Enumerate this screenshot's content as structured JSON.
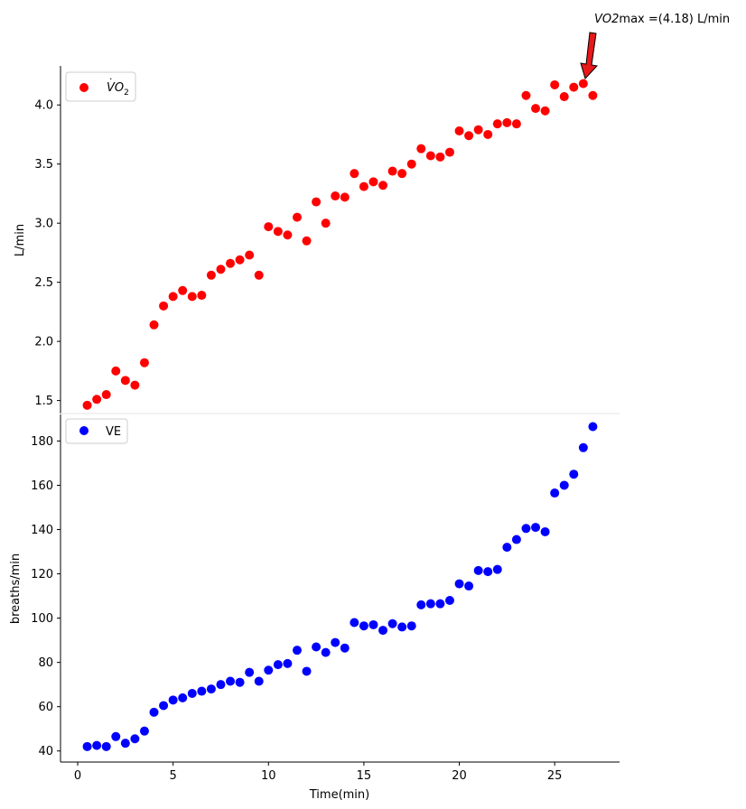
{
  "chart_data": [
    {
      "type": "scatter",
      "ylabel": "L/min",
      "xlabel": "",
      "xlim": [
        -0.9,
        28.4
      ],
      "ylim": [
        1.39,
        4.33
      ],
      "yticks": [
        "1.5",
        "2.0",
        "2.5",
        "3.0",
        "3.5",
        "4.0"
      ],
      "ytick_values": [
        1.5,
        2.0,
        2.5,
        3.0,
        3.5,
        4.0
      ],
      "legend_placement": "upper-left",
      "series": [
        {
          "name": "VO2",
          "color": "#ff0000",
          "x": [
            0.5,
            1.0,
            1.5,
            2.0,
            2.5,
            3.0,
            3.5,
            4.0,
            4.5,
            5.0,
            5.5,
            6.0,
            6.5,
            7.0,
            7.5,
            8.0,
            8.5,
            9.0,
            9.5,
            10.0,
            10.5,
            11.0,
            11.5,
            12.0,
            12.5,
            13.0,
            13.5,
            14.0,
            14.5,
            15.0,
            15.5,
            16.0,
            16.5,
            17.0,
            17.5,
            18.0,
            18.5,
            19.0,
            19.5,
            20.0,
            20.5,
            21.0,
            21.5,
            22.0,
            22.5,
            23.0,
            23.5,
            24.0,
            24.5,
            25.0,
            25.5,
            26.0,
            26.5,
            27.0
          ],
          "y": [
            1.46,
            1.51,
            1.55,
            1.75,
            1.67,
            1.63,
            1.82,
            2.14,
            2.3,
            2.38,
            2.43,
            2.38,
            2.39,
            2.56,
            2.61,
            2.66,
            2.69,
            2.73,
            2.56,
            2.97,
            2.93,
            2.9,
            3.05,
            2.85,
            3.18,
            3.0,
            3.23,
            3.22,
            3.42,
            3.31,
            3.35,
            3.32,
            3.44,
            3.42,
            3.5,
            3.63,
            3.57,
            3.56,
            3.6,
            3.78,
            3.74,
            3.79,
            3.75,
            3.84,
            3.85,
            3.84,
            4.08,
            3.97,
            3.95,
            4.17,
            4.07,
            4.15,
            4.18,
            4.08
          ]
        }
      ],
      "annotation": {
        "text_prefix": "VO2",
        "text_suffix": "max =(4.18) L/min",
        "x": 26.5,
        "y": 4.18
      },
      "legend_label_main": "VO",
      "legend_label_sub": "2"
    },
    {
      "type": "scatter",
      "ylabel": "breaths/min",
      "xlabel": "Time(min)",
      "xlim": [
        -0.9,
        28.4
      ],
      "ylim": [
        35,
        192
      ],
      "xticks": [
        "0",
        "5",
        "10",
        "15",
        "20",
        "25"
      ],
      "xtick_values": [
        0,
        5,
        10,
        15,
        20,
        25
      ],
      "yticks": [
        "40",
        "60",
        "80",
        "100",
        "120",
        "140",
        "160",
        "180"
      ],
      "ytick_values": [
        40,
        60,
        80,
        100,
        120,
        140,
        160,
        180
      ],
      "legend_placement": "upper-left",
      "series": [
        {
          "name": "VE",
          "color": "#0000ff",
          "x": [
            0.5,
            1.0,
            1.5,
            2.0,
            2.5,
            3.0,
            3.5,
            4.0,
            4.5,
            5.0,
            5.5,
            6.0,
            6.5,
            7.0,
            7.5,
            8.0,
            8.5,
            9.0,
            9.5,
            10.0,
            10.5,
            11.0,
            11.5,
            12.0,
            12.5,
            13.0,
            13.5,
            14.0,
            14.5,
            15.0,
            15.5,
            16.0,
            16.5,
            17.0,
            17.5,
            18.0,
            18.5,
            19.0,
            19.5,
            20.0,
            20.5,
            21.0,
            21.5,
            22.0,
            22.5,
            23.0,
            23.5,
            24.0,
            24.5,
            25.0,
            25.5,
            26.0,
            26.5,
            27.0
          ],
          "y": [
            42,
            42.5,
            42,
            46.5,
            43.5,
            45.5,
            49,
            57.5,
            60.5,
            63,
            64,
            66,
            67,
            68,
            70,
            71.5,
            71,
            75.5,
            71.5,
            76.5,
            79,
            79.5,
            85.5,
            76,
            87,
            84.5,
            89,
            86.5,
            98,
            96.5,
            97,
            94.5,
            97.5,
            96,
            96.5,
            106,
            106.5,
            106.5,
            108,
            115.5,
            114.5,
            121.5,
            121,
            122,
            132,
            135.5,
            140.5,
            141,
            139,
            156.5,
            160,
            165,
            177,
            186.5
          ]
        }
      ]
    }
  ]
}
